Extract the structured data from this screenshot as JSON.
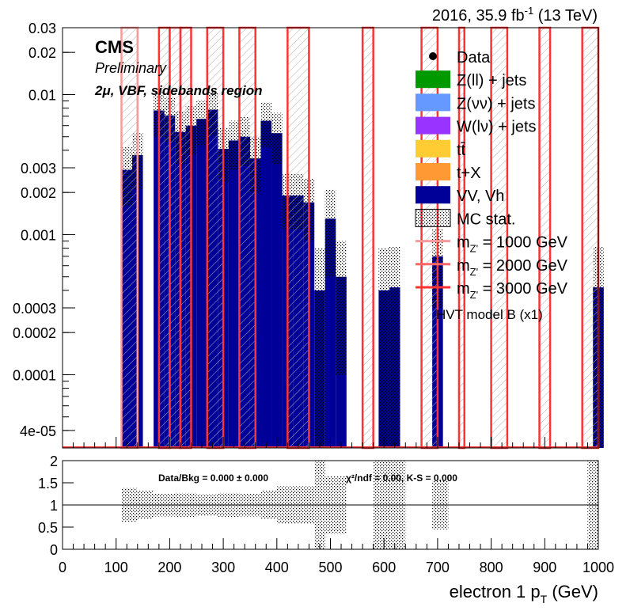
{
  "header": {
    "lumi_prefix": "2016, 35.9 fb",
    "lumi_exp": "-1",
    "energy": "(13 TeV)"
  },
  "labels": {
    "cms": "CMS",
    "preliminary": "Preliminary",
    "region": "2μ, VBF, sidebands region",
    "model_note": "HVT model B (x1)",
    "ratio_stats": "Data/Bkg = 0.000 ± 0.000",
    "ratio_chi2": "χ²/ndf = 0.00,   K-S = 0.000"
  },
  "legend": [
    {
      "label": "Data",
      "kind": "marker",
      "color": "#000000"
    },
    {
      "label": "Z(ll) + jets",
      "kind": "box",
      "color": "#009900"
    },
    {
      "label": "Z(νν) + jets",
      "kind": "box",
      "color": "#6699ff"
    },
    {
      "label": "W(lν) + jets",
      "kind": "box",
      "color": "#9933ff"
    },
    {
      "label": "tt̄",
      "kind": "box",
      "color": "#ffcc33"
    },
    {
      "label": "t+X",
      "kind": "box",
      "color": "#ff9933"
    },
    {
      "label": "VV, Vh",
      "kind": "box",
      "color": "#000099"
    },
    {
      "label": "MC stat.",
      "kind": "hatch",
      "color": "#000000"
    },
    {
      "label": "m",
      "sub": "Z'",
      "rest": " = 1000 GeV",
      "kind": "line",
      "color": "#ff9999"
    },
    {
      "label": "m",
      "sub": "Z'",
      "rest": " = 2000 GeV",
      "kind": "line",
      "color": "#ff6666"
    },
    {
      "label": "m",
      "sub": "Z'",
      "rest": " = 3000 GeV",
      "kind": "line",
      "color": "#ff3333"
    }
  ],
  "chart_data": {
    "type": "bar",
    "xlabel": "electron 1 p",
    "xlabel_sub": "T",
    "xlabel_unit": " (GeV)",
    "xlim": [
      0,
      1000
    ],
    "ylim": [
      3e-05,
      0.03
    ],
    "ylog": true,
    "x_ticks": [
      "0",
      "100",
      "200",
      "300",
      "400",
      "500",
      "600",
      "700",
      "800",
      "900",
      "1000"
    ],
    "y_ticks": [
      {
        "v": 0.03,
        "t": "0.03"
      },
      {
        "v": 0.02,
        "t": "0.02"
      },
      {
        "v": 0.01,
        "t": "0.01"
      },
      {
        "v": 0.003,
        "t": "0.003"
      },
      {
        "v": 0.002,
        "t": "0.002"
      },
      {
        "v": 0.001,
        "t": "0.001"
      },
      {
        "v": 0.0003,
        "t": "0.0003"
      },
      {
        "v": 0.0002,
        "t": "0.0002"
      },
      {
        "v": 0.0001,
        "t": "0.0001"
      },
      {
        "v": 4e-05,
        "t": "4e-05"
      }
    ],
    "bin_width": 20,
    "background": {
      "name": "VV, Vh",
      "color": "#000099",
      "bins": [
        {
          "lo": 110,
          "val": 0.0029,
          "unc": 0.0013
        },
        {
          "lo": 130,
          "val": 0.0037,
          "unc": 0.0016
        },
        {
          "lo": 170,
          "val": 0.0077,
          "unc": 0.0027
        },
        {
          "lo": 190,
          "val": 0.0071,
          "unc": 0.0025
        },
        {
          "lo": 210,
          "val": 0.0054,
          "unc": 0.0022
        },
        {
          "lo": 230,
          "val": 0.006,
          "unc": 0.0023
        },
        {
          "lo": 250,
          "val": 0.0067,
          "unc": 0.0024
        },
        {
          "lo": 270,
          "val": 0.0078,
          "unc": 0.0027
        },
        {
          "lo": 290,
          "val": 0.0041,
          "unc": 0.0017
        },
        {
          "lo": 310,
          "val": 0.0047,
          "unc": 0.0018
        },
        {
          "lo": 330,
          "val": 0.005,
          "unc": 0.0019
        },
        {
          "lo": 350,
          "val": 0.0035,
          "unc": 0.0015
        },
        {
          "lo": 370,
          "val": 0.0065,
          "unc": 0.0023
        },
        {
          "lo": 390,
          "val": 0.0053,
          "unc": 0.0021
        },
        {
          "lo": 410,
          "val": 0.0019,
          "unc": 0.0008
        },
        {
          "lo": 430,
          "val": 0.0019,
          "unc": 0.0008
        },
        {
          "lo": 450,
          "val": 0.0017,
          "unc": 0.0008
        },
        {
          "lo": 470,
          "val": 0.0004,
          "unc": 0.0004
        },
        {
          "lo": 490,
          "val": 0.0013,
          "unc": 0.0008
        },
        {
          "lo": 510,
          "val": 0.0005,
          "unc": 0.0004
        },
        {
          "lo": 590,
          "val": 0.0004,
          "unc": 0.0004
        },
        {
          "lo": 610,
          "val": 0.00042,
          "unc": 0.0004
        },
        {
          "lo": 690,
          "val": 0.0007,
          "unc": 0.0004
        },
        {
          "lo": 990,
          "val": 0.00042,
          "unc": 0.0004
        }
      ]
    },
    "signals": [
      {
        "name": "m_Z' = 1000 GeV",
        "color": "#ff9999",
        "ranges": [
          [
            110,
            140
          ]
        ]
      },
      {
        "name": "m_Z' = 2000 GeV",
        "color": "#ff6666",
        "ranges": [
          [
            200,
            220
          ]
        ]
      },
      {
        "name": "m_Z' = 3000 GeV",
        "color": "#ff3333",
        "ranges": [
          [
            180,
            200
          ],
          [
            220,
            240
          ],
          [
            270,
            300
          ],
          [
            330,
            360
          ],
          [
            420,
            460
          ],
          [
            560,
            580
          ],
          [
            670,
            700
          ],
          [
            740,
            750
          ],
          [
            800,
            830
          ],
          [
            890,
            910
          ],
          [
            970,
            1000
          ]
        ]
      }
    ],
    "ratio": {
      "ylim": [
        0,
        2
      ],
      "y_ticks": [
        {
          "v": 0,
          "t": "0"
        },
        {
          "v": 0.5,
          "t": "0.5"
        },
        {
          "v": 1,
          "t": "1"
        },
        {
          "v": 1.5,
          "t": "1.5"
        },
        {
          "v": 2,
          "t": "2"
        }
      ],
      "band": [
        {
          "lo": 110,
          "hi": 140,
          "up": 1.38,
          "dn": 0.62
        },
        {
          "lo": 140,
          "hi": 170,
          "up": 1.32,
          "dn": 0.68
        },
        {
          "lo": 170,
          "hi": 210,
          "up": 1.26,
          "dn": 0.74
        },
        {
          "lo": 210,
          "hi": 250,
          "up": 1.27,
          "dn": 0.73
        },
        {
          "lo": 250,
          "hi": 290,
          "up": 1.24,
          "dn": 0.76
        },
        {
          "lo": 290,
          "hi": 330,
          "up": 1.27,
          "dn": 0.73
        },
        {
          "lo": 330,
          "hi": 370,
          "up": 1.26,
          "dn": 0.74
        },
        {
          "lo": 370,
          "hi": 400,
          "up": 1.32,
          "dn": 0.68
        },
        {
          "lo": 400,
          "hi": 470,
          "up": 1.42,
          "dn": 0.58
        },
        {
          "lo": 470,
          "hi": 490,
          "up": 2.0,
          "dn": 0.0
        },
        {
          "lo": 490,
          "hi": 530,
          "up": 1.65,
          "dn": 0.35
        },
        {
          "lo": 580,
          "hi": 640,
          "up": 2.0,
          "dn": 0.0
        },
        {
          "lo": 690,
          "hi": 720,
          "up": 1.55,
          "dn": 0.45
        },
        {
          "lo": 980,
          "hi": 1000,
          "up": 2.0,
          "dn": 0.0
        }
      ]
    }
  }
}
